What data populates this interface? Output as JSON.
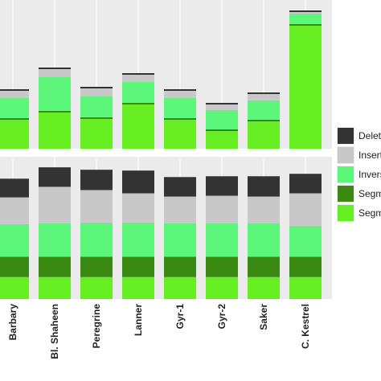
{
  "chart_data": [
    {
      "type": "stacked-bar",
      "ylim": [
        0,
        185
      ],
      "series": [
        {
          "name": "Delet",
          "color": "#333333",
          "values": [
            2,
            2,
            2,
            2,
            2,
            2,
            2,
            2
          ]
        },
        {
          "name": "Insert",
          "color": "#c8c8c8",
          "values": [
            9,
            10,
            10,
            9,
            9,
            7,
            8,
            2
          ]
        },
        {
          "name": "Invers",
          "color": "#5cf77a",
          "values": [
            25,
            42,
            26,
            26,
            25,
            24,
            24,
            13
          ]
        },
        {
          "name": "Segm",
          "color": "#3a8a12",
          "values": [
            2,
            2,
            2,
            2,
            2,
            2,
            2,
            2
          ]
        },
        {
          "name": "Segm",
          "color": "#66ee22",
          "values": [
            36,
            45,
            37,
            55,
            36,
            22,
            34,
            153
          ]
        }
      ]
    },
    {
      "type": "stacked-bar",
      "ylim": [
        0,
        175
      ],
      "categories": [
        "Barbary",
        "Bl. Shaheen",
        "Peregrine",
        "Lanner",
        "Gyr-1",
        "Gyr-2",
        "Saker",
        "C. Kestrel"
      ],
      "legend": "right",
      "series": [
        {
          "name": "Delet",
          "color": "#333333",
          "values": [
            23,
            24,
            25,
            28,
            24,
            24,
            25,
            24
          ]
        },
        {
          "name": "Insert",
          "color": "#c8c8c8",
          "values": [
            33,
            45,
            40,
            36,
            33,
            34,
            33,
            40
          ]
        },
        {
          "name": "Invers",
          "color": "#5cf77a",
          "values": [
            40,
            41,
            42,
            42,
            41,
            41,
            41,
            38
          ]
        },
        {
          "name": "Segm",
          "color": "#3a8a12",
          "values": [
            25,
            25,
            25,
            25,
            25,
            25,
            25,
            25
          ]
        },
        {
          "name": "Segm",
          "color": "#66ee22",
          "values": [
            27,
            27,
            27,
            27,
            27,
            27,
            27,
            27
          ]
        }
      ]
    }
  ]
}
